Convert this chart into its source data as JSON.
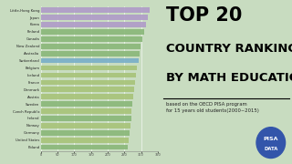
{
  "countries": [
    "Little-Hong Kong",
    "Japan",
    "Korea",
    "Finland",
    "Canada",
    "New Zealand",
    "Australia",
    "Switzerland",
    "Belgium",
    "Iceland",
    "France",
    "Denmark",
    "Austria",
    "Sweden",
    "Czech Republic",
    "Ireland",
    "Norway",
    "Germany",
    "United States",
    "Poland"
  ],
  "scores": [
    327,
    320,
    315,
    310,
    305,
    298,
    295,
    292,
    287,
    284,
    282,
    280,
    278,
    275,
    272,
    270,
    268,
    265,
    262,
    260
  ],
  "bar_colors": [
    "#b09cc8",
    "#b09cc8",
    "#b09cc8",
    "#8ab87a",
    "#8ab87a",
    "#8ab87a",
    "#8ab87a",
    "#7aafc8",
    "#a8c47a",
    "#a8c47a",
    "#a8c47a",
    "#a8c47a",
    "#a8c47a",
    "#8ab87a",
    "#a8c47a",
    "#8ab87a",
    "#a8c47a",
    "#8ab87a",
    "#a8c47a",
    "#8ab87a"
  ],
  "bg_color": "#c8dcc0",
  "title_top": "TOP 20",
  "title_main1": "COUNTRY RANKING",
  "title_main2": "BY MATH EDUCATION",
  "subtitle": "based on the OECD PISA program\nfor 15 years old students(2000~2015)",
  "xlabel_ticks": [
    0,
    50,
    100,
    150,
    200,
    250,
    300,
    350
  ],
  "xmax": 350,
  "logo_color": "#3355aa"
}
